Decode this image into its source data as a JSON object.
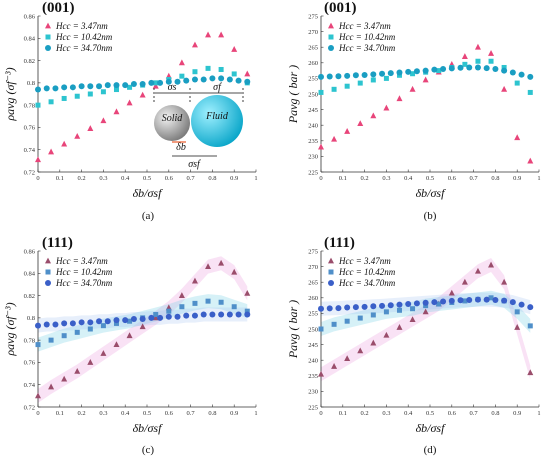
{
  "chart_data": [
    {
      "type": "scatter",
      "panel_label": "(001)",
      "caption": "(a)",
      "ylabel": "ρavg (σf⁻³)",
      "xlabel": "δb/σsf",
      "xlim": [
        0,
        1
      ],
      "ylim": [
        0.72,
        0.86
      ],
      "xticks": [
        "0",
        "0.1",
        "0.2",
        "0.3",
        "0.4",
        "0.5",
        "0.6",
        "0.7",
        "0.8",
        "0.9",
        "1"
      ],
      "yticks": [
        "0.72",
        "0.74",
        "0.76",
        "0.78",
        "0.8",
        "0.82",
        "0.84",
        "0.86"
      ],
      "legend_position": "top-left",
      "series": [
        {
          "name": "Hcc = 3.47nm",
          "marker": "triangle",
          "color": "#e8457a",
          "x": [
            0,
            0.06,
            0.12,
            0.18,
            0.24,
            0.3,
            0.36,
            0.42,
            0.48,
            0.54,
            0.6,
            0.66,
            0.72,
            0.78,
            0.84,
            0.9,
            0.96
          ],
          "y": [
            0.731,
            0.738,
            0.745,
            0.752,
            0.759,
            0.766,
            0.774,
            0.782,
            0.789,
            0.797,
            0.806,
            0.818,
            0.834,
            0.843,
            0.843,
            0.83,
            0.808
          ]
        },
        {
          "name": "Hcc = 10.42nm",
          "marker": "square",
          "color": "#2dc4cf",
          "x": [
            0,
            0.06,
            0.12,
            0.18,
            0.24,
            0.3,
            0.36,
            0.42,
            0.48,
            0.54,
            0.6,
            0.66,
            0.72,
            0.78,
            0.84,
            0.9,
            0.96
          ],
          "y": [
            0.78,
            0.783,
            0.786,
            0.788,
            0.79,
            0.792,
            0.794,
            0.796,
            0.798,
            0.8,
            0.803,
            0.806,
            0.81,
            0.813,
            0.812,
            0.808,
            0.8
          ]
        },
        {
          "name": "Hcc = 34.70nm",
          "marker": "circle",
          "color": "#1a9ec2",
          "x": [
            0,
            0.04,
            0.08,
            0.12,
            0.16,
            0.2,
            0.24,
            0.28,
            0.32,
            0.36,
            0.4,
            0.44,
            0.48,
            0.52,
            0.56,
            0.6,
            0.64,
            0.68,
            0.72,
            0.76,
            0.8,
            0.84,
            0.88,
            0.92,
            0.96
          ],
          "y": [
            0.794,
            0.795,
            0.795,
            0.796,
            0.796,
            0.797,
            0.797,
            0.797,
            0.798,
            0.798,
            0.798,
            0.799,
            0.799,
            0.8,
            0.8,
            0.801,
            0.801,
            0.802,
            0.803,
            0.803,
            0.804,
            0.804,
            0.803,
            0.802,
            0.801
          ]
        }
      ],
      "inset": {
        "solid": "Solid",
        "fluid": "Fluid",
        "sigma_s": "σs",
        "sigma_f": "σf",
        "sigma_sf": "σsf",
        "delta_b": "δb"
      }
    },
    {
      "type": "scatter",
      "panel_label": "(001)",
      "caption": "(b)",
      "ylabel": "Pavg ( bar )",
      "xlabel": "δb/σsf",
      "xlim": [
        0,
        1
      ],
      "ylim": [
        225,
        275
      ],
      "xticks": [
        "0",
        "0.1",
        "0.2",
        "0.3",
        "0.4",
        "0.5",
        "0.6",
        "0.7",
        "0.8",
        "0.9",
        "1"
      ],
      "yticks": [
        "225",
        "230",
        "235",
        "240",
        "245",
        "250",
        "255",
        "260",
        "265",
        "270",
        "275"
      ],
      "legend_position": "top-left",
      "series": [
        {
          "name": "Hcc = 3.47nm",
          "marker": "triangle",
          "color": "#e8457a",
          "x": [
            0,
            0.06,
            0.12,
            0.18,
            0.24,
            0.3,
            0.36,
            0.42,
            0.48,
            0.54,
            0.6,
            0.66,
            0.72,
            0.78,
            0.84,
            0.9,
            0.96
          ],
          "y": [
            233,
            235.5,
            238,
            240.5,
            243,
            245.5,
            248.5,
            251.5,
            254.5,
            257,
            259.5,
            262,
            265,
            263,
            251.5,
            236,
            228.5
          ]
        },
        {
          "name": "Hcc = 10.42nm",
          "marker": "square",
          "color": "#2dc4cf",
          "x": [
            0,
            0.06,
            0.12,
            0.18,
            0.24,
            0.3,
            0.36,
            0.42,
            0.48,
            0.54,
            0.6,
            0.66,
            0.72,
            0.78,
            0.84,
            0.9,
            0.96
          ],
          "y": [
            250.5,
            251.5,
            252.5,
            253.5,
            254.5,
            255,
            256,
            256.5,
            257,
            257.5,
            258.5,
            259.5,
            260.5,
            260.5,
            258.5,
            253.5,
            250.5
          ]
        },
        {
          "name": "Hcc = 34.70nm",
          "marker": "circle",
          "color": "#1a9ec2",
          "x": [
            0,
            0.04,
            0.08,
            0.12,
            0.16,
            0.2,
            0.24,
            0.28,
            0.32,
            0.36,
            0.4,
            0.44,
            0.48,
            0.52,
            0.56,
            0.6,
            0.64,
            0.68,
            0.72,
            0.76,
            0.8,
            0.84,
            0.88,
            0.92,
            0.96
          ],
          "y": [
            255.5,
            255.6,
            255.7,
            255.8,
            256,
            256.1,
            256.3,
            256.5,
            256.7,
            256.9,
            257.1,
            257.3,
            257.5,
            257.8,
            258,
            258.2,
            258.4,
            258.5,
            258.5,
            258.3,
            258,
            257.5,
            256.9,
            256.2,
            255.5
          ]
        }
      ]
    },
    {
      "type": "scatter",
      "panel_label": "(111)",
      "caption": "(c)",
      "ylabel": "ρavg (σf⁻³)",
      "xlabel": "δb/σsf",
      "xlim": [
        0,
        1
      ],
      "ylim": [
        0.72,
        0.86
      ],
      "xticks": [
        "0",
        "0.1",
        "0.2",
        "0.3",
        "0.4",
        "0.5",
        "0.6",
        "0.7",
        "0.8",
        "0.9",
        "1"
      ],
      "yticks": [
        "0.72",
        "0.74",
        "0.76",
        "0.78",
        "0.8",
        "0.82",
        "0.84",
        "0.86"
      ],
      "legend_position": "top-left",
      "series": [
        {
          "name": "Hcc = 3.47nm",
          "marker": "triangle",
          "color": "#9a4d6b",
          "x": [
            0,
            0.06,
            0.12,
            0.18,
            0.24,
            0.3,
            0.36,
            0.42,
            0.48,
            0.54,
            0.6,
            0.66,
            0.72,
            0.78,
            0.84,
            0.9,
            0.96
          ],
          "y": [
            0.73,
            0.738,
            0.745,
            0.752,
            0.76,
            0.768,
            0.776,
            0.784,
            0.792,
            0.8,
            0.809,
            0.82,
            0.833,
            0.846,
            0.849,
            0.841,
            0.822
          ]
        },
        {
          "name": "Hcc = 10.42nm",
          "marker": "square",
          "color": "#4f8fc9",
          "x": [
            0,
            0.06,
            0.12,
            0.18,
            0.24,
            0.3,
            0.36,
            0.42,
            0.48,
            0.54,
            0.6,
            0.66,
            0.72,
            0.78,
            0.84,
            0.9,
            0.96
          ],
          "y": [
            0.776,
            0.78,
            0.784,
            0.787,
            0.79,
            0.793,
            0.795,
            0.797,
            0.8,
            0.803,
            0.806,
            0.81,
            0.813,
            0.815,
            0.814,
            0.81,
            0.806
          ]
        },
        {
          "name": "Hcc = 34.70nm",
          "marker": "circle",
          "color": "#3a5fc8",
          "x": [
            0,
            0.04,
            0.08,
            0.12,
            0.16,
            0.2,
            0.24,
            0.28,
            0.32,
            0.36,
            0.4,
            0.44,
            0.48,
            0.52,
            0.56,
            0.6,
            0.64,
            0.68,
            0.72,
            0.76,
            0.8,
            0.84,
            0.88,
            0.92,
            0.96
          ],
          "y": [
            0.793,
            0.794,
            0.794,
            0.795,
            0.795,
            0.796,
            0.796,
            0.797,
            0.797,
            0.798,
            0.798,
            0.799,
            0.799,
            0.8,
            0.8,
            0.801,
            0.801,
            0.802,
            0.802,
            0.803,
            0.803,
            0.803,
            0.803,
            0.803,
            0.803
          ]
        }
      ]
    },
    {
      "type": "scatter",
      "panel_label": "(111)",
      "caption": "(d)",
      "ylabel": "Pavg ( bar )",
      "xlabel": "δb/σsf",
      "xlim": [
        0,
        1
      ],
      "ylim": [
        225,
        275
      ],
      "xticks": [
        "0",
        "0.1",
        "0.2",
        "0.3",
        "0.4",
        "0.5",
        "0.6",
        "0.7",
        "0.8",
        "0.9",
        "1"
      ],
      "yticks": [
        "225",
        "230",
        "235",
        "240",
        "245",
        "250",
        "255",
        "260",
        "265",
        "270",
        "275"
      ],
      "legend_position": "top-left",
      "series": [
        {
          "name": "Hcc = 3.47nm",
          "marker": "triangle",
          "color": "#9a4d6b",
          "x": [
            0,
            0.06,
            0.12,
            0.18,
            0.24,
            0.3,
            0.36,
            0.42,
            0.48,
            0.54,
            0.6,
            0.66,
            0.72,
            0.78,
            0.84,
            0.9,
            0.96
          ],
          "y": [
            235.5,
            238,
            240.5,
            243,
            245.5,
            248,
            250.5,
            253,
            255.5,
            258,
            261.5,
            265,
            268.5,
            270.5,
            265,
            250.5,
            236
          ]
        },
        {
          "name": "Hcc = 10.42nm",
          "marker": "square",
          "color": "#4f8fc9",
          "x": [
            0,
            0.06,
            0.12,
            0.18,
            0.24,
            0.3,
            0.36,
            0.42,
            0.48,
            0.54,
            0.6,
            0.66,
            0.72,
            0.78,
            0.84,
            0.9,
            0.96
          ],
          "y": [
            250,
            251.5,
            252.5,
            253.5,
            254.5,
            255.5,
            256,
            256.5,
            257.5,
            258,
            258.5,
            259,
            259.5,
            260,
            259,
            255.5,
            251
          ]
        },
        {
          "name": "Hcc = 34.70nm",
          "marker": "circle",
          "color": "#3a5fc8",
          "x": [
            0,
            0.04,
            0.08,
            0.12,
            0.16,
            0.2,
            0.24,
            0.28,
            0.32,
            0.36,
            0.4,
            0.44,
            0.48,
            0.52,
            0.56,
            0.6,
            0.64,
            0.68,
            0.72,
            0.76,
            0.8,
            0.84,
            0.88,
            0.92,
            0.96
          ],
          "y": [
            256.5,
            256.6,
            256.7,
            256.9,
            257,
            257.1,
            257.3,
            257.4,
            257.6,
            257.8,
            258,
            258.2,
            258.4,
            258.6,
            258.8,
            259,
            259.2,
            259.3,
            259.4,
            259.4,
            259.3,
            259.1,
            258.6,
            257.8,
            257
          ]
        }
      ]
    }
  ]
}
